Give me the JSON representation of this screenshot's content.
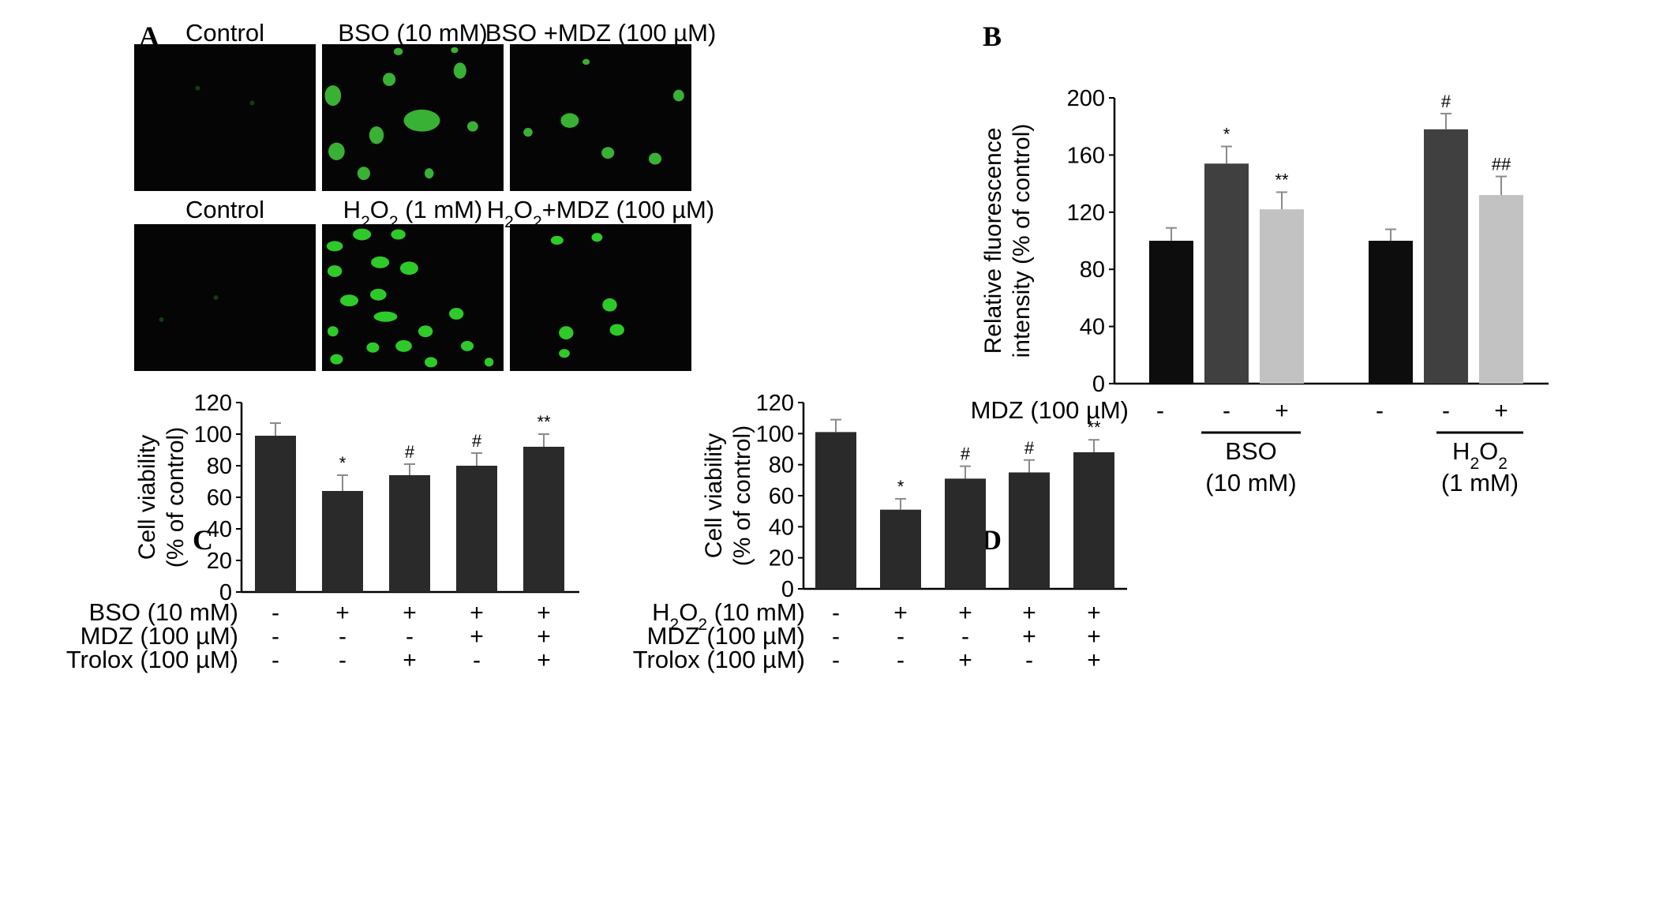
{
  "panel_letters": [
    "A",
    "B",
    "C",
    "D"
  ],
  "micrographs": [
    {
      "title": "Control",
      "cells": []
    },
    {
      "title": "BSO (10 mM)",
      "cells": [
        [
          0.06,
          0.35,
          0.09,
          0.14
        ],
        [
          0.37,
          0.24,
          0.07,
          0.09
        ],
        [
          0.76,
          0.18,
          0.07,
          0.11
        ],
        [
          0.08,
          0.73,
          0.09,
          0.12
        ],
        [
          0.3,
          0.62,
          0.08,
          0.12
        ],
        [
          0.55,
          0.52,
          0.2,
          0.15
        ],
        [
          0.83,
          0.56,
          0.06,
          0.07
        ],
        [
          0.23,
          0.88,
          0.07,
          0.09
        ],
        [
          0.59,
          0.88,
          0.05,
          0.07
        ],
        [
          0.42,
          0.05,
          0.05,
          0.05
        ],
        [
          0.73,
          0.04,
          0.04,
          0.04
        ]
      ]
    },
    {
      "title": "BSO +MDZ (100 µM)",
      "cells": [
        [
          0.33,
          0.52,
          0.1,
          0.1
        ],
        [
          0.93,
          0.35,
          0.06,
          0.08
        ],
        [
          0.54,
          0.74,
          0.07,
          0.08
        ],
        [
          0.8,
          0.78,
          0.07,
          0.08
        ],
        [
          0.1,
          0.6,
          0.05,
          0.06
        ],
        [
          0.42,
          0.12,
          0.04,
          0.04
        ]
      ]
    },
    {
      "title": "Control",
      "cells": []
    },
    {
      "title": "H2O2 (1 mM)",
      "cells": [
        [
          0.07,
          0.15,
          0.09,
          0.07
        ],
        [
          0.22,
          0.07,
          0.1,
          0.08
        ],
        [
          0.42,
          0.07,
          0.08,
          0.07
        ],
        [
          0.07,
          0.32,
          0.08,
          0.08
        ],
        [
          0.32,
          0.26,
          0.1,
          0.08
        ],
        [
          0.48,
          0.3,
          0.1,
          0.09
        ],
        [
          0.31,
          0.48,
          0.09,
          0.08
        ],
        [
          0.15,
          0.52,
          0.1,
          0.08
        ],
        [
          0.35,
          0.63,
          0.13,
          0.07
        ],
        [
          0.74,
          0.61,
          0.08,
          0.08
        ],
        [
          0.06,
          0.73,
          0.06,
          0.07
        ],
        [
          0.57,
          0.73,
          0.08,
          0.08
        ],
        [
          0.28,
          0.84,
          0.07,
          0.07
        ],
        [
          0.45,
          0.83,
          0.09,
          0.08
        ],
        [
          0.8,
          0.83,
          0.07,
          0.07
        ],
        [
          0.08,
          0.92,
          0.07,
          0.07
        ],
        [
          0.6,
          0.94,
          0.07,
          0.07
        ],
        [
          0.92,
          0.94,
          0.05,
          0.06
        ]
      ]
    },
    {
      "title": "H2O2+MDZ (100 µM)",
      "cells": [
        [
          0.26,
          0.11,
          0.07,
          0.06
        ],
        [
          0.48,
          0.09,
          0.06,
          0.06
        ],
        [
          0.55,
          0.55,
          0.08,
          0.09
        ],
        [
          0.31,
          0.74,
          0.08,
          0.09
        ],
        [
          0.59,
          0.72,
          0.08,
          0.08
        ],
        [
          0.3,
          0.88,
          0.06,
          0.06
        ]
      ]
    }
  ],
  "chart_data": [
    {
      "type": "bar",
      "panel": "B",
      "ylabel": "Relative fluorescence intensity (% of control)",
      "ylim": [
        0,
        200
      ],
      "yticks": [
        0,
        40,
        80,
        120,
        160,
        200
      ],
      "row_label": "MDZ (100 µM)",
      "groups": [
        {
          "name": "BSO (10 mM)",
          "markers": [
            "-",
            "-",
            "+"
          ]
        },
        {
          "name": "H2O2 (1 mM)",
          "markers": [
            "-",
            "-",
            "+"
          ]
        }
      ],
      "bars": [
        {
          "value": 100,
          "error": 9,
          "color": "#0d0d0d",
          "sig": ""
        },
        {
          "value": 154,
          "error": 12,
          "color": "#404040",
          "sig": "*"
        },
        {
          "value": 122,
          "error": 12,
          "color": "#c2c2c2",
          "sig": "**"
        },
        {
          "value": 100,
          "error": 8,
          "color": "#0d0d0d",
          "sig": ""
        },
        {
          "value": 178,
          "error": 11,
          "color": "#404040",
          "sig": "#"
        },
        {
          "value": 132,
          "error": 13,
          "color": "#c2c2c2",
          "sig": "##"
        }
      ]
    },
    {
      "type": "bar",
      "panel": "C",
      "ylabel": "Cell viability (% of control)",
      "ylim": [
        0,
        120
      ],
      "yticks": [
        0,
        20,
        40,
        60,
        80,
        100,
        120
      ],
      "bar_color": "#2a2a2a",
      "values": [
        99,
        64,
        74,
        80,
        92
      ],
      "errors": [
        8,
        10,
        7,
        8,
        8
      ],
      "sig": [
        "",
        "*",
        "#",
        "#",
        "**"
      ],
      "rows": [
        {
          "label": "BSO (10 mM)",
          "markers": [
            "-",
            "+",
            "+",
            "+",
            "+"
          ]
        },
        {
          "label": "MDZ (100 µM)",
          "markers": [
            "-",
            "-",
            "-",
            "+",
            "+"
          ]
        },
        {
          "label": "Trolox (100 µM)",
          "markers": [
            "-",
            "-",
            "+",
            "-",
            "+"
          ]
        }
      ]
    },
    {
      "type": "bar",
      "panel": "D",
      "ylabel": "Cell viability (% of control)",
      "ylim": [
        0,
        120
      ],
      "yticks": [
        0,
        20,
        40,
        60,
        80,
        100,
        120
      ],
      "bar_color": "#2a2a2a",
      "values": [
        101,
        51,
        71,
        75,
        88
      ],
      "errors": [
        8,
        7,
        8,
        8,
        8
      ],
      "sig": [
        "",
        "*",
        "#",
        "#",
        "**"
      ],
      "rows": [
        {
          "label": "H2O2 (10 mM)",
          "markers": [
            "-",
            "+",
            "+",
            "+",
            "+"
          ]
        },
        {
          "label": "MDZ (100 µM)",
          "markers": [
            "-",
            "-",
            "-",
            "+",
            "+"
          ]
        },
        {
          "label": "Trolox (100 µM)",
          "markers": [
            "-",
            "-",
            "+",
            "-",
            "+"
          ]
        }
      ]
    }
  ]
}
